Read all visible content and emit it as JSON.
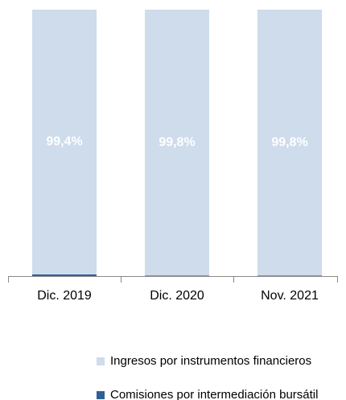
{
  "chart_data": {
    "type": "stacked_bar",
    "categories": [
      "Dic. 2019",
      "Dic. 2020",
      "Nov. 2021"
    ],
    "series": [
      {
        "name": "Comisiones por intermediación bursátil",
        "color": "#2f5f94",
        "values": [
          0.6,
          0.2,
          0.2
        ]
      },
      {
        "name": "Ingresos por instrumentos financieros",
        "color": "#cedcec",
        "values": [
          99.4,
          99.8,
          99.8
        ],
        "value_labels": [
          "99,4%",
          "99,8%",
          "99,8%"
        ]
      }
    ],
    "legend_order": [
      1,
      0
    ]
  }
}
